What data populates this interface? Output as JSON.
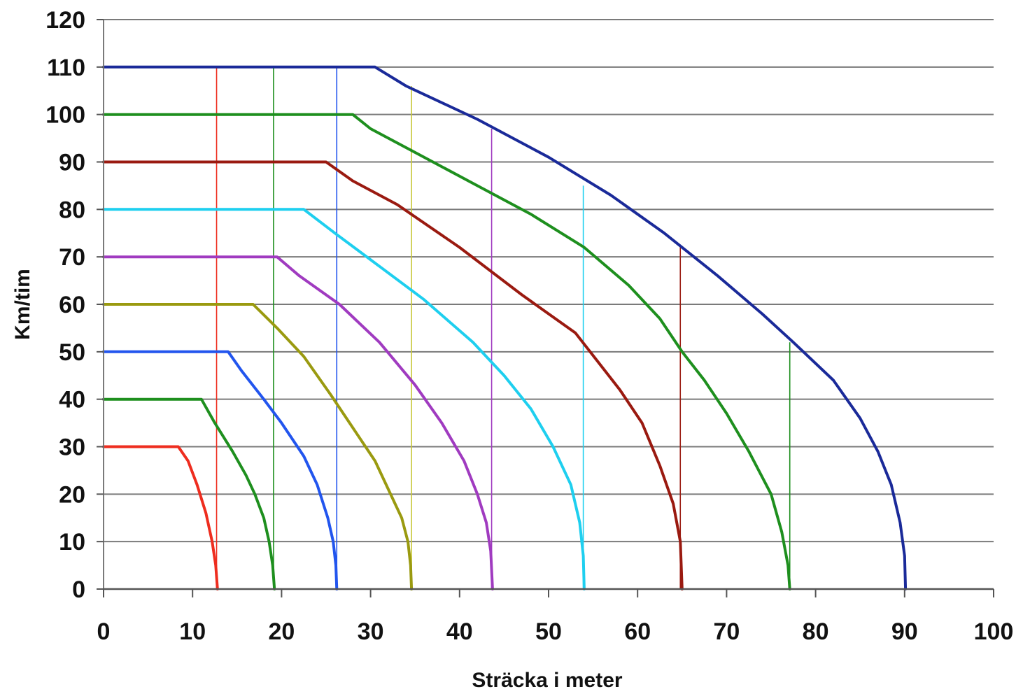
{
  "chart_data": {
    "type": "line",
    "title": "",
    "xlabel": "Sträcka i meter",
    "ylabel": "Km/tim",
    "xlim": [
      0,
      100
    ],
    "ylim": [
      0,
      120
    ],
    "xticks": [
      "0",
      "10",
      "20",
      "30",
      "40",
      "50",
      "60",
      "70",
      "80",
      "90",
      "100"
    ],
    "yticks": [
      "0",
      "10",
      "20",
      "30",
      "40",
      "50",
      "60",
      "70",
      "80",
      "90",
      "100",
      "110",
      "120"
    ],
    "grid": "horizontal",
    "legend": "none",
    "series": [
      {
        "color": "#ee2d1f",
        "points": [
          [
            0,
            30
          ],
          [
            8.4,
            30
          ],
          [
            9.5,
            27
          ],
          [
            10.5,
            22
          ],
          [
            11.5,
            16
          ],
          [
            12.2,
            10
          ],
          [
            12.6,
            5
          ],
          [
            12.8,
            0
          ]
        ]
      },
      {
        "color": "#1e8f1e",
        "points": [
          [
            0,
            40
          ],
          [
            11,
            40
          ],
          [
            12.5,
            35
          ],
          [
            14.5,
            29
          ],
          [
            16,
            24
          ],
          [
            17,
            20
          ],
          [
            18,
            15
          ],
          [
            18.6,
            10
          ],
          [
            19,
            5
          ],
          [
            19.2,
            0
          ]
        ]
      },
      {
        "color": "#2255ee",
        "points": [
          [
            0,
            50
          ],
          [
            14,
            50
          ],
          [
            15.5,
            46
          ],
          [
            18,
            40
          ],
          [
            20,
            35
          ],
          [
            22.5,
            28
          ],
          [
            24,
            22
          ],
          [
            25.2,
            15
          ],
          [
            25.8,
            10
          ],
          [
            26.1,
            5
          ],
          [
            26.2,
            0
          ]
        ]
      },
      {
        "color": "#9a9a10",
        "points": [
          [
            0,
            60
          ],
          [
            16.8,
            60
          ],
          [
            19.5,
            55
          ],
          [
            22.5,
            49
          ],
          [
            25.5,
            41
          ],
          [
            28,
            34
          ],
          [
            30.5,
            27
          ],
          [
            32,
            21
          ],
          [
            33.5,
            15
          ],
          [
            34.2,
            10
          ],
          [
            34.5,
            5
          ],
          [
            34.6,
            0
          ]
        ]
      },
      {
        "color": "#a03bc0",
        "points": [
          [
            0,
            70
          ],
          [
            19.5,
            70
          ],
          [
            22,
            66
          ],
          [
            26.5,
            60
          ],
          [
            31,
            52
          ],
          [
            35,
            43
          ],
          [
            38,
            35
          ],
          [
            40.5,
            27
          ],
          [
            42,
            20
          ],
          [
            43,
            14
          ],
          [
            43.5,
            8
          ],
          [
            43.7,
            0
          ]
        ]
      },
      {
        "color": "#1ecfef",
        "points": [
          [
            0,
            80
          ],
          [
            22.5,
            80
          ],
          [
            26,
            75
          ],
          [
            31,
            68
          ],
          [
            36,
            61
          ],
          [
            41.5,
            52
          ],
          [
            45,
            45
          ],
          [
            48,
            38
          ],
          [
            50.5,
            30
          ],
          [
            52.5,
            22
          ],
          [
            53.5,
            14
          ],
          [
            53.9,
            7
          ],
          [
            54,
            0
          ]
        ]
      },
      {
        "color": "#9a1a10",
        "points": [
          [
            0,
            90
          ],
          [
            25,
            90
          ],
          [
            28,
            86
          ],
          [
            33,
            81
          ],
          [
            40,
            72
          ],
          [
            47,
            62
          ],
          [
            53,
            54
          ],
          [
            58,
            42
          ],
          [
            60.5,
            35
          ],
          [
            62.5,
            26
          ],
          [
            64,
            18
          ],
          [
            64.8,
            10
          ],
          [
            65,
            0
          ]
        ]
      },
      {
        "color": "#1e8f1e",
        "points": [
          [
            0,
            100
          ],
          [
            28,
            100
          ],
          [
            30,
            97
          ],
          [
            35,
            92
          ],
          [
            41,
            86
          ],
          [
            48,
            79
          ],
          [
            54,
            72
          ],
          [
            59,
            64
          ],
          [
            62.5,
            57
          ],
          [
            65,
            50
          ],
          [
            67.5,
            44
          ],
          [
            70,
            37
          ],
          [
            72.5,
            29
          ],
          [
            75,
            20
          ],
          [
            76.2,
            12
          ],
          [
            76.9,
            5
          ],
          [
            77.1,
            0
          ]
        ]
      },
      {
        "color": "#1a2a99",
        "points": [
          [
            0,
            110
          ],
          [
            30.5,
            110
          ],
          [
            34,
            106
          ],
          [
            42,
            99
          ],
          [
            50,
            91
          ],
          [
            57,
            83
          ],
          [
            63,
            75
          ],
          [
            69,
            66
          ],
          [
            74,
            58
          ],
          [
            77.5,
            52
          ],
          [
            82,
            44
          ],
          [
            85,
            36
          ],
          [
            87,
            29
          ],
          [
            88.5,
            22
          ],
          [
            89.5,
            14
          ],
          [
            90,
            7
          ],
          [
            90.1,
            0
          ]
        ]
      }
    ],
    "vlines": [
      {
        "x": 12.7,
        "top": 110,
        "color": "#ee2d1f"
      },
      {
        "x": 19.1,
        "top": 110,
        "color": "#1e8f1e"
      },
      {
        "x": 26.2,
        "top": 110,
        "color": "#2255ee"
      },
      {
        "x": 34.6,
        "top": 106,
        "color": "#c8c83a"
      },
      {
        "x": 43.6,
        "top": 97,
        "color": "#a03bc0"
      },
      {
        "x": 53.9,
        "top": 85,
        "color": "#1ecfef"
      },
      {
        "x": 64.8,
        "top": 72,
        "color": "#9a1a10"
      },
      {
        "x": 77.1,
        "top": 52,
        "color": "#1e8f1e"
      }
    ]
  }
}
